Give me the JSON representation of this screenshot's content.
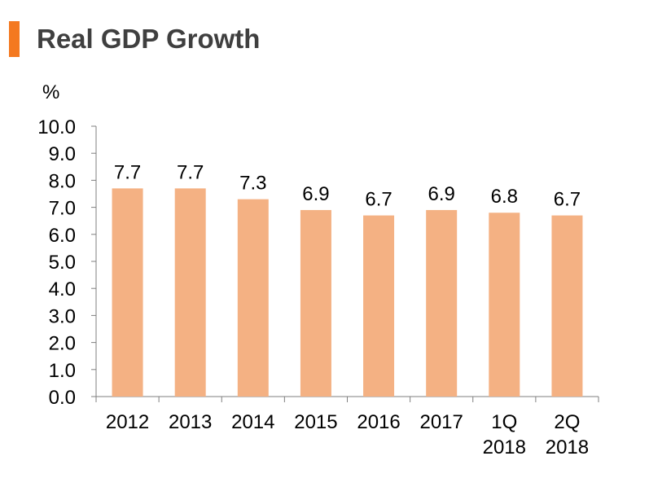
{
  "colors": {
    "accent": "#f47920",
    "bar": "#f4b183",
    "axis": "#7f7f7f",
    "title": "#3f3f3f"
  },
  "chart_data": {
    "type": "bar",
    "title": "Real GDP Growth",
    "ylabel": "%",
    "xlabel": "",
    "ylim": [
      0,
      10
    ],
    "yticks": [
      "0.0",
      "1.0",
      "2.0",
      "3.0",
      "4.0",
      "5.0",
      "6.0",
      "7.0",
      "8.0",
      "9.0",
      "10.0"
    ],
    "categories": [
      [
        "2012"
      ],
      [
        "2013"
      ],
      [
        "2014"
      ],
      [
        "2015"
      ],
      [
        "2016"
      ],
      [
        "2017"
      ],
      [
        "1Q",
        "2018"
      ],
      [
        "2Q",
        "2018"
      ]
    ],
    "values": [
      7.7,
      7.7,
      7.3,
      6.9,
      6.7,
      6.9,
      6.8,
      6.7
    ],
    "value_labels": [
      "7.7",
      "7.7",
      "7.3",
      "6.9",
      "6.7",
      "6.9",
      "6.8",
      "6.7"
    ]
  }
}
